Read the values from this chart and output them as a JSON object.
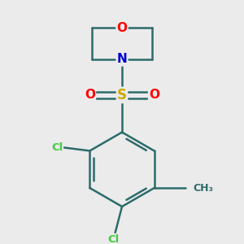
{
  "background_color": "#ebebeb",
  "bond_color": "#2d6b6b",
  "bond_width": 1.8,
  "atom_colors": {
    "O": "#ff0000",
    "N": "#0000cc",
    "S": "#ccaa00",
    "Cl": "#44cc44",
    "C": "#2d6b6b",
    "CH3": "#2d6b6b"
  },
  "font_size_atoms": 11,
  "font_size_small": 9.5,
  "font_size_cl": 9.5
}
